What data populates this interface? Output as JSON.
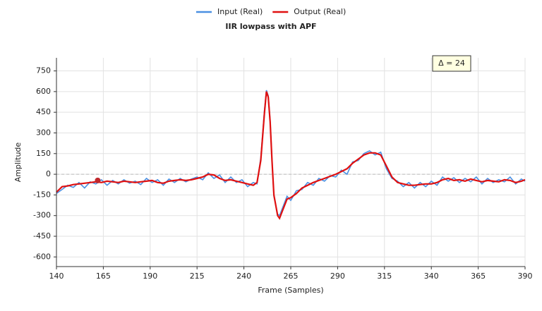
{
  "chart_data": {
    "type": "line",
    "title": "IIR lowpass with APF",
    "xlabel": "Frame (Samples)",
    "ylabel": "Amplitude",
    "annotation": "Δ = 24",
    "marker": {
      "x": 162,
      "y": -45,
      "color": "#c0282d"
    },
    "zero_line": true,
    "grid": true,
    "xlim": [
      140,
      390
    ],
    "xticks": [
      140,
      165,
      190,
      215,
      240,
      265,
      290,
      315,
      340,
      365,
      390
    ],
    "ylim": [
      -670,
      845
    ],
    "yticks": [
      -600,
      -450,
      -300,
      -150,
      0,
      150,
      300,
      450,
      600,
      750
    ],
    "x": [
      140,
      143,
      146,
      149,
      152,
      155,
      158,
      161,
      164,
      167,
      170,
      173,
      176,
      179,
      182,
      185,
      188,
      191,
      194,
      197,
      200,
      203,
      206,
      209,
      212,
      215,
      218,
      221,
      224,
      227,
      230,
      233,
      236,
      239,
      242,
      245,
      247,
      249,
      251,
      252,
      253,
      254,
      255,
      256,
      258,
      259,
      261,
      263,
      265,
      268,
      271,
      274,
      277,
      280,
      283,
      286,
      289,
      292,
      295,
      298,
      301,
      304,
      307,
      310,
      313,
      316,
      319,
      322,
      325,
      328,
      331,
      334,
      337,
      340,
      343,
      346,
      349,
      352,
      355,
      358,
      361,
      364,
      367,
      370,
      373,
      376,
      379,
      382,
      385,
      388,
      390
    ],
    "series": [
      {
        "name": "Input (Real)",
        "color": "#4a90e2",
        "values": [
          -140,
          -110,
          -80,
          -95,
          -60,
          -100,
          -55,
          -70,
          -40,
          -80,
          -45,
          -70,
          -40,
          -65,
          -50,
          -75,
          -30,
          -60,
          -40,
          -80,
          -35,
          -60,
          -30,
          -55,
          -35,
          -20,
          -40,
          10,
          -30,
          -5,
          -60,
          -20,
          -60,
          -40,
          -90,
          -60,
          -70,
          120,
          470,
          610,
          570,
          390,
          110,
          -160,
          -290,
          -300,
          -230,
          -160,
          -190,
          -120,
          -110,
          -60,
          -80,
          -30,
          -50,
          -10,
          -20,
          30,
          0,
          90,
          100,
          150,
          170,
          140,
          160,
          40,
          -30,
          -50,
          -90,
          -60,
          -100,
          -60,
          -90,
          -50,
          -80,
          -20,
          -50,
          -25,
          -60,
          -30,
          -55,
          -20,
          -70,
          -30,
          -60,
          -40,
          -55,
          -20,
          -70,
          -35,
          -50
        ]
      },
      {
        "name": "Output (Real)",
        "color": "#e01010",
        "values": [
          -130,
          -90,
          -85,
          -75,
          -70,
          -65,
          -60,
          -55,
          -60,
          -50,
          -55,
          -60,
          -50,
          -55,
          -60,
          -55,
          -50,
          -45,
          -60,
          -65,
          -50,
          -45,
          -40,
          -45,
          -40,
          -30,
          -20,
          0,
          -5,
          -30,
          -45,
          -40,
          -50,
          -60,
          -70,
          -80,
          -60,
          100,
          450,
          600,
          560,
          380,
          100,
          -150,
          -300,
          -320,
          -250,
          -180,
          -170,
          -140,
          -100,
          -80,
          -60,
          -45,
          -30,
          -15,
          0,
          20,
          40,
          80,
          110,
          140,
          155,
          155,
          140,
          60,
          -20,
          -60,
          -70,
          -80,
          -80,
          -75,
          -70,
          -70,
          -60,
          -40,
          -30,
          -45,
          -40,
          -50,
          -35,
          -45,
          -55,
          -45,
          -50,
          -55,
          -40,
          -45,
          -60,
          -50,
          -40
        ]
      }
    ]
  }
}
